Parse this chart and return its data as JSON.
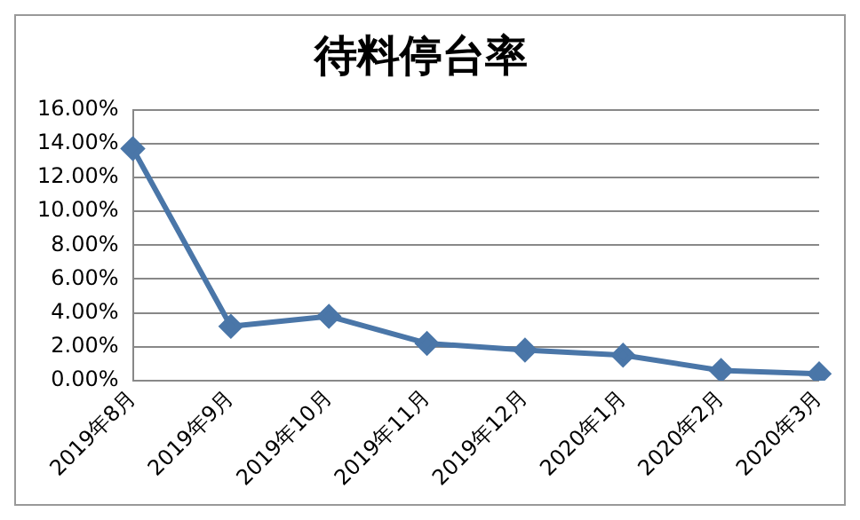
{
  "chart_data": {
    "type": "line",
    "title": "待料停台率",
    "categories": [
      "2019年8月",
      "2019年9月",
      "2019年10月",
      "2019年11月",
      "2019年12月",
      "2020年1月",
      "2020年2月",
      "2020年3月"
    ],
    "series": [
      {
        "color": "#4a76a8",
        "values": [
          13.7,
          3.2,
          3.8,
          2.2,
          1.8,
          1.5,
          0.6,
          0.4
        ]
      }
    ],
    "ylim": [
      0,
      16
    ],
    "yticks": [
      {
        "value": 0,
        "label": "0.00%"
      },
      {
        "value": 2,
        "label": "2.00%"
      },
      {
        "value": 4,
        "label": "4.00%"
      },
      {
        "value": 6,
        "label": "6.00%"
      },
      {
        "value": 8,
        "label": "8.00%"
      },
      {
        "value": 10,
        "label": "10.00%"
      },
      {
        "value": 12,
        "label": "12.00%"
      },
      {
        "value": 14,
        "label": "14.00%"
      },
      {
        "value": 16,
        "label": "16.00%"
      }
    ],
    "grid": "y",
    "legend": false,
    "marker": "diamond",
    "line_style": "solid"
  }
}
